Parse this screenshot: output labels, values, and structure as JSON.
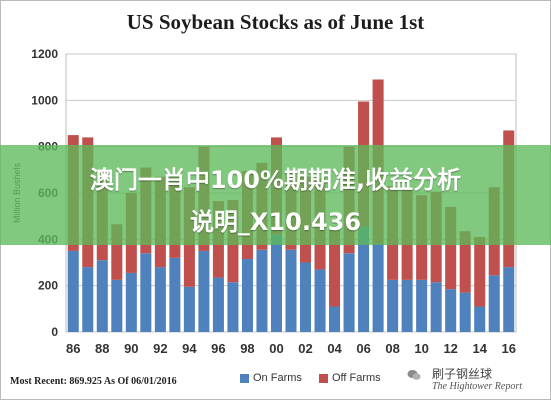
{
  "chart_data": {
    "type": "bar",
    "stacked": true,
    "title": "US Soybean Stocks as of June 1st",
    "ylabel": "Million Bushels",
    "xlabel": "",
    "ylim": [
      0,
      1200
    ],
    "yticks": [
      0,
      200,
      400,
      600,
      800,
      1000,
      1200
    ],
    "xtick_labels": [
      "86",
      "88",
      "90",
      "92",
      "94",
      "96",
      "98",
      "00",
      "02",
      "04",
      "06",
      "08",
      "10",
      "12",
      "14",
      "16"
    ],
    "categories": [
      "86",
      "87",
      "88",
      "89",
      "90",
      "91",
      "92",
      "93",
      "94",
      "95",
      "96",
      "97",
      "98",
      "99",
      "00",
      "01",
      "02",
      "03",
      "04",
      "05",
      "06",
      "07",
      "08",
      "09",
      "10",
      "11",
      "12",
      "13",
      "14",
      "15",
      "16"
    ],
    "series": [
      {
        "name": "On Farms",
        "color": "#4f81bd",
        "values": [
          350,
          280,
          310,
          225,
          255,
          340,
          280,
          320,
          195,
          350,
          235,
          215,
          315,
          355,
          420,
          355,
          300,
          270,
          110,
          340,
          455,
          380,
          225,
          225,
          225,
          215,
          185,
          170,
          110,
          245,
          280
        ]
      },
      {
        "name": "Off Farms",
        "color": "#c0504d",
        "values": [
          500,
          560,
          380,
          240,
          345,
          370,
          390,
          350,
          430,
          450,
          330,
          355,
          380,
          375,
          420,
          340,
          370,
          395,
          330,
          460,
          540,
          710,
          405,
          390,
          365,
          390,
          355,
          265,
          300,
          380,
          590
        ]
      }
    ],
    "grid": true,
    "legend_position": "bottom"
  },
  "footer_note": "Most Recent: 869.925 As Of 06/01/2016",
  "overlay": {
    "line1": "澳门一肖中100%期期准,收益分析",
    "line2": "说明_X10.436"
  },
  "watermark": {
    "account": "刷子钢丝球",
    "source": "The Hightower Report"
  }
}
